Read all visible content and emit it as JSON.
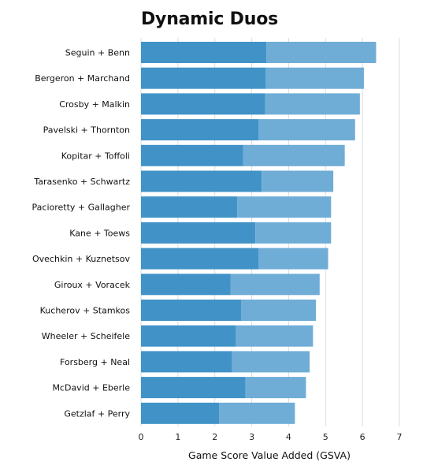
{
  "chart_data": {
    "type": "bar",
    "orientation": "horizontal",
    "stacked": true,
    "title": "Dynamic Duos",
    "xlabel": "Game Score Value Added (GSVA)",
    "ylabel": "",
    "xlim": [
      0,
      7
    ],
    "xticks": [
      "0",
      "1",
      "2",
      "3",
      "4",
      "5",
      "6",
      "7"
    ],
    "grid": true,
    "categories": [
      "Seguin + Benn",
      "Bergeron + Marchand",
      "Crosby + Malkin",
      "Pavelski + Thornton",
      "Kopitar + Toffoli",
      "Tarasenko + Schwartz",
      "Pacioretty + Gallagher",
      "Kane + Toews",
      "Ovechkin + Kuznetsov",
      "Giroux + Voracek",
      "Kucherov + Stamkos",
      "Wheeler + Scheifele",
      "Forsberg + Neal",
      "McDavid + Eberle",
      "Getzlaf + Perry"
    ],
    "series": [
      {
        "values": [
          3.4,
          3.38,
          3.36,
          3.18,
          2.77,
          3.27,
          2.61,
          3.1,
          3.18,
          2.43,
          2.71,
          2.57,
          2.47,
          2.83,
          2.12
        ],
        "color": "#4193c7"
      },
      {
        "values": [
          2.97,
          2.66,
          2.57,
          2.62,
          2.75,
          1.94,
          2.54,
          2.05,
          1.89,
          2.41,
          2.03,
          2.09,
          2.1,
          1.64,
          2.05
        ],
        "color": "#6fadd7"
      }
    ]
  }
}
